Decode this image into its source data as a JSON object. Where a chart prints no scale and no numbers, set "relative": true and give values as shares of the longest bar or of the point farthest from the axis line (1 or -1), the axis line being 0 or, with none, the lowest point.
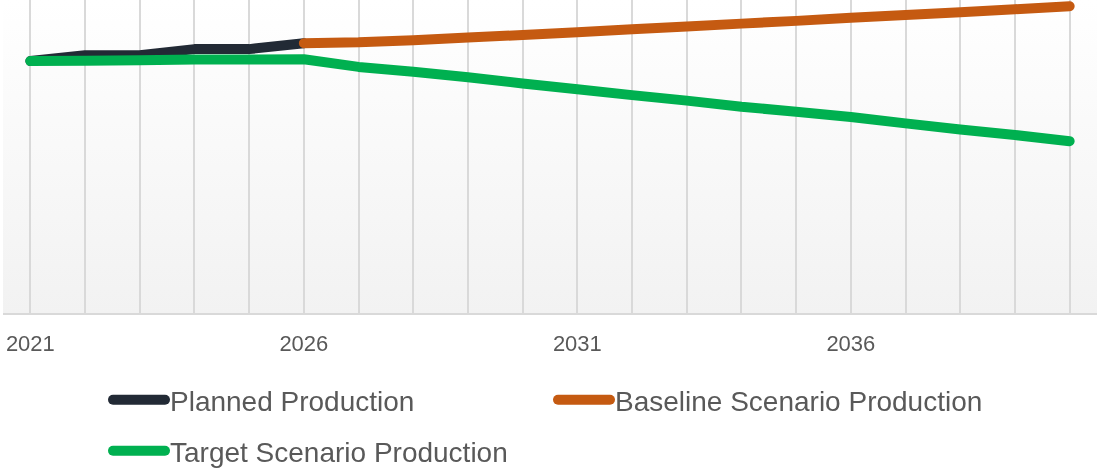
{
  "chart_data": {
    "type": "line",
    "relative": true,
    "categories": [
      "2021",
      null,
      null,
      null,
      null,
      "2026",
      null,
      null,
      null,
      null,
      "2031",
      null,
      null,
      null,
      null,
      "2036",
      null,
      null,
      null,
      null
    ],
    "series": [
      {
        "name": "Planned Production",
        "color": "#222a35",
        "values": [
          0.821,
          0.84,
          0.84,
          0.86,
          0.86,
          0.879,
          null,
          null,
          null,
          null,
          null,
          null,
          null,
          null,
          null,
          null,
          null,
          null,
          null,
          null
        ]
      },
      {
        "name": "Baseline Scenario Production",
        "color": "#c55a11",
        "values": [
          null,
          null,
          null,
          null,
          null,
          0.879,
          0.882,
          0.889,
          0.898,
          0.906,
          0.915,
          0.925,
          0.934,
          0.943,
          0.952,
          0.962,
          0.971,
          0.98,
          0.99,
          1.0
        ]
      },
      {
        "name": "Target Scenario Production",
        "color": "#00b050",
        "values": [
          0.821,
          0.822,
          0.824,
          0.826,
          0.826,
          0.827,
          0.802,
          0.786,
          0.768,
          0.748,
          0.729,
          0.71,
          0.692,
          0.672,
          0.656,
          0.639,
          0.618,
          0.598,
          0.58,
          0.56
        ]
      }
    ],
    "grid": "x",
    "legend": "bottom"
  }
}
